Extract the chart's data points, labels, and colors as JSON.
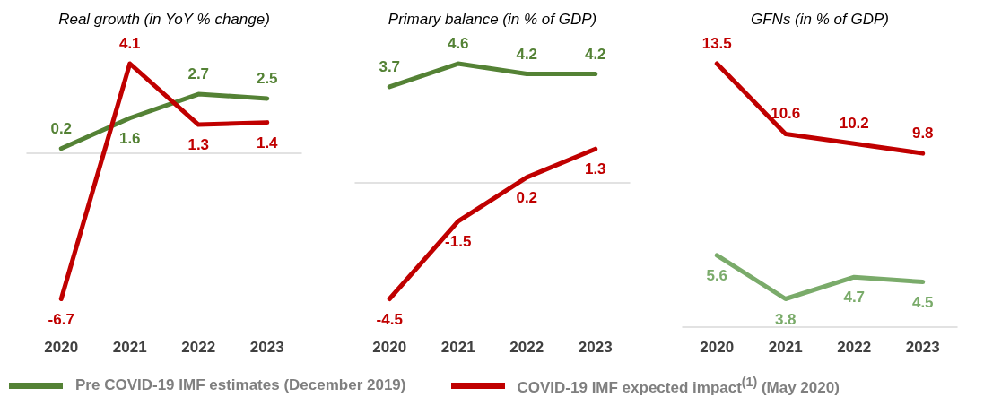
{
  "chart_data": [
    {
      "type": "line",
      "title": "Real growth (in YoY % change)",
      "categories": [
        "2020",
        "2021",
        "2022",
        "2023"
      ],
      "tick_labels": "x",
      "grid": false,
      "data_labels": true,
      "legend": "bottom",
      "marker": "none",
      "line_style": "solid",
      "series": [
        {
          "name": "Pre COVID-19 IMF estimates (December 2019)",
          "color": "#548235",
          "values": [
            0.2,
            1.6,
            2.7,
            2.5
          ]
        },
        {
          "name": "COVID-19 IMF expected impact$^{(1)}$ (May 2020)",
          "color": "#c00000",
          "values": [
            -6.7,
            4.1,
            1.3,
            1.4
          ]
        }
      ]
    },
    {
      "type": "line",
      "title": "Primary balance (in % of GDP)",
      "categories": [
        "2020",
        "2021",
        "2022",
        "2023"
      ],
      "tick_labels": "x",
      "grid": false,
      "data_labels": true,
      "marker": "none",
      "line_style": "solid",
      "series": [
        {
          "color": "#548235",
          "values": [
            3.7,
            4.6,
            4.2,
            4.2
          ]
        },
        {
          "color": "#c00000",
          "values": [
            -4.5,
            -1.5,
            0.2,
            1.3
          ]
        }
      ]
    },
    {
      "type": "line",
      "title": "GFNs (in % of GDP)",
      "categories": [
        "2020",
        "2021",
        "2022",
        "2023"
      ],
      "tick_labels": "x",
      "grid": false,
      "data_labels": true,
      "marker": "none",
      "line_style": "solid",
      "series": [
        {
          "color": "#7aab6a",
          "values": [
            5.6,
            3.8,
            4.7,
            4.5
          ]
        },
        {
          "color": "#c00000",
          "values": [
            13.5,
            10.6,
            10.2,
            9.8
          ]
        }
      ]
    }
  ]
}
